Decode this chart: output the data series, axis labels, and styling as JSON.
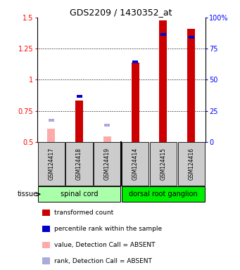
{
  "title": "GDS2209 / 1430352_at",
  "samples": [
    "GSM124417",
    "GSM124418",
    "GSM124419",
    "GSM124414",
    "GSM124415",
    "GSM124416"
  ],
  "transformed_count": [
    null,
    0.835,
    null,
    1.14,
    1.475,
    1.41
  ],
  "transformed_count_absent": [
    0.605,
    null,
    0.545,
    null,
    null,
    null
  ],
  "percentile_rank": [
    null,
    0.855,
    null,
    1.135,
    1.355,
    1.33
  ],
  "percentile_rank_absent": [
    0.665,
    null,
    0.625,
    null,
    null,
    null
  ],
  "ylim": [
    0.5,
    1.5
  ],
  "yticks_left": [
    0.5,
    0.75,
    1.0,
    1.25,
    1.5
  ],
  "yticks_left_labels": [
    "0.5",
    "0.75",
    "1",
    "1.25",
    "1.5"
  ],
  "yticks_right_vals": [
    0.5,
    0.75,
    1.0,
    1.25,
    1.5
  ],
  "yticks_right_labels": [
    "0",
    "25",
    "50",
    "75",
    "100%"
  ],
  "bar_width": 0.28,
  "color_red": "#cc0000",
  "color_blue": "#0000cc",
  "color_pink": "#ffaaaa",
  "color_lavender": "#aaaadd",
  "color_tissue_bg_sc": "#aaffaa",
  "color_tissue_bg_drg": "#00ee00",
  "color_sample_bg": "#cccccc",
  "tissue_label": "tissue",
  "spinal_cord_label": "spinal cord",
  "drg_label": "dorsal root ganglion",
  "legend_items": [
    {
      "color": "#cc0000",
      "label": "transformed count"
    },
    {
      "color": "#0000cc",
      "label": "percentile rank within the sample"
    },
    {
      "color": "#ffaaaa",
      "label": "value, Detection Call = ABSENT"
    },
    {
      "color": "#aaaadd",
      "label": "rank, Detection Call = ABSENT"
    }
  ]
}
